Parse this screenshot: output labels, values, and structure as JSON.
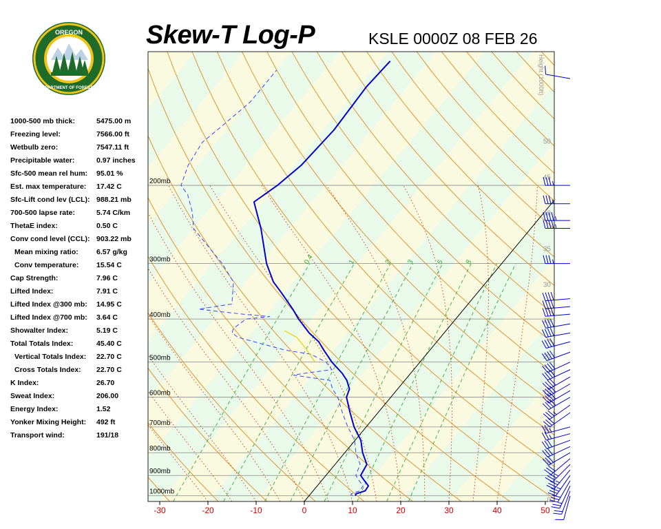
{
  "logo": {
    "top_text": "OREGON",
    "bottom_text": "DEPARTMENT OF FORESTRY"
  },
  "header": {
    "title": "Skew-T Log-P",
    "station_time": "KSLE 0000Z 08 FEB 26"
  },
  "indices": [
    {
      "label": "1000-500 mb thick:",
      "value": "5475.00 m"
    },
    {
      "label": "Freezing level:",
      "value": "7566.00 ft"
    },
    {
      "label": "Wetbulb zero:",
      "value": "7547.11 ft"
    },
    {
      "label": "Precipitable water:",
      "value": "0.97 inches"
    },
    {
      "label": "Sfc-500 mean rel hum:",
      "value": "95.01 %"
    },
    {
      "label": "Est. max temperature:",
      "value": "17.42 C"
    },
    {
      "label": "Sfc-Lift cond lev (LCL):",
      "value": "988.21 mb"
    },
    {
      "label": "700-500 lapse rate:",
      "value": "5.74 C/km"
    },
    {
      "label": "ThetaE index:",
      "value": "0.50 C"
    },
    {
      "label": "Conv cond level (CCL):",
      "value": "903.22 mb"
    },
    {
      "label": "Mean mixing ratio:",
      "value": "6.57 g/kg",
      "indent": true
    },
    {
      "label": "Conv temperature:",
      "value": "15.54 C",
      "indent": true
    },
    {
      "label": "Cap Strength:",
      "value": "7.96 C"
    },
    {
      "label": "Lifted Index:",
      "value": "7.91 C"
    },
    {
      "label": "Lifted Index @300 mb:",
      "value": "14.95 C"
    },
    {
      "label": "Lifted Index @700 mb:",
      "value": "3.64 C"
    },
    {
      "label": "Showalter Index:",
      "value": "5.19 C"
    },
    {
      "label": "Total Totals Index:",
      "value": "45.40 C"
    },
    {
      "label": "Vertical Totals Index:",
      "value": "22.70 C",
      "indent": true
    },
    {
      "label": "Cross Totals Index:",
      "value": "22.70 C",
      "indent": true
    },
    {
      "label": "K Index:",
      "value": "26.70"
    },
    {
      "label": "Sweat Index:",
      "value": "206.00"
    },
    {
      "label": "Energy Index:",
      "value": "1.52"
    },
    {
      "label": "Yonker Mixing Height:",
      "value": "492 ft"
    },
    {
      "label": "Transport wind:",
      "value": "191/18"
    }
  ],
  "colors": {
    "temperature": "#0000cc",
    "dewpoint": "#3344ff",
    "isotherm_label": "#cc0000",
    "dry_adiabat": "#e08a1a",
    "moist_adiabat": "#cc3300",
    "mixing_ratio": "#33aa33",
    "parcel": "#e6d200",
    "band_green": "#eafaea",
    "band_yellow": "#fafae0"
  },
  "chart_data": {
    "type": "line",
    "title": "Skew-T Log-P",
    "subtitle": "KSLE 0000Z 08 FEB 26",
    "x_axis": {
      "unit": "C",
      "range": [
        -33,
        52
      ],
      "ticks": [
        -30,
        -20,
        -10,
        0,
        10,
        20,
        30,
        40,
        50
      ]
    },
    "y_axis": {
      "scale": "log",
      "unit": "mb",
      "range": [
        1030,
        100
      ],
      "pressure_labels": [
        "1000mb",
        "900mb",
        "800mb",
        "700mb",
        "600mb",
        "500mb",
        "400mb",
        "300mb",
        "200mb"
      ],
      "pressure_levels": [
        1000,
        900,
        800,
        700,
        600,
        500,
        400,
        300,
        200
      ]
    },
    "height_axis": {
      "label": "Height (1000ft)",
      "ticks": [
        "0",
        "5",
        "10",
        "15",
        "20",
        "25",
        "30",
        "35",
        "40",
        "45",
        "50"
      ]
    },
    "mixing_ratio_labels": [
      "0.4",
      "1",
      "2",
      "3",
      "5",
      "8"
    ],
    "series": [
      {
        "name": "temperature",
        "points": [
          [
            1000,
            9.6
          ],
          [
            990,
            9.4
          ],
          [
            975,
            10.8
          ],
          [
            950,
            10.6
          ],
          [
            925,
            8.9
          ],
          [
            900,
            7.2
          ],
          [
            850,
            6.6
          ],
          [
            800,
            3.7
          ],
          [
            750,
            1.2
          ],
          [
            700,
            -2.5
          ],
          [
            650,
            -5.8
          ],
          [
            600,
            -9.2
          ],
          [
            575,
            -10.0
          ],
          [
            550,
            -12.0
          ],
          [
            530,
            -14.2
          ],
          [
            500,
            -18.3
          ],
          [
            470,
            -22.0
          ],
          [
            450,
            -24.5
          ],
          [
            430,
            -28.0
          ],
          [
            400,
            -32.6
          ],
          [
            380,
            -35.5
          ],
          [
            350,
            -40.5
          ],
          [
            330,
            -44.2
          ],
          [
            300,
            -48.8
          ],
          [
            250,
            -56.0
          ],
          [
            218,
            -62.0
          ],
          [
            200,
            -60.0
          ],
          [
            180,
            -58.5
          ],
          [
            150,
            -57.8
          ],
          [
            120,
            -58.5
          ],
          [
            105,
            -58.0
          ]
        ]
      },
      {
        "name": "dewpoint",
        "points": [
          [
            1000,
            9.0
          ],
          [
            990,
            8.4
          ],
          [
            975,
            9.7
          ],
          [
            950,
            9.5
          ],
          [
            925,
            7.8
          ],
          [
            900,
            6.2
          ],
          [
            850,
            5.2
          ],
          [
            800,
            2.3
          ],
          [
            750,
            -0.1
          ],
          [
            700,
            -3.8
          ],
          [
            650,
            -7.4
          ],
          [
            600,
            -11.0
          ],
          [
            575,
            -13.5
          ],
          [
            550,
            -15.5
          ],
          [
            535,
            -24.0
          ],
          [
            530,
            -22.0
          ],
          [
            520,
            -17.0
          ],
          [
            500,
            -19.5
          ],
          [
            480,
            -24.0
          ],
          [
            470,
            -30.0
          ],
          [
            440,
            -42.0
          ],
          [
            430,
            -44.0
          ],
          [
            420,
            -44.5
          ],
          [
            400,
            -43.5
          ],
          [
            395,
            -39.0
          ],
          [
            390,
            -45.0
          ],
          [
            385,
            -50.0
          ],
          [
            380,
            -55.0
          ],
          [
            370,
            -49.0
          ],
          [
            330,
            -52.5
          ],
          [
            300,
            -58.0
          ],
          [
            250,
            -70.0
          ],
          [
            230,
            -73.0
          ],
          [
            210,
            -77.0
          ],
          [
            200,
            -80.0
          ],
          [
            180,
            -82.0
          ],
          [
            160,
            -83.0
          ],
          [
            150,
            -82.0
          ],
          [
            130,
            -80.0
          ],
          [
            110,
            -80.0
          ]
        ]
      },
      {
        "name": "parcel",
        "points": [
          [
            500,
            -21.8
          ],
          [
            470,
            -25.5
          ],
          [
            440,
            -29.8
          ],
          [
            425,
            -33.5
          ]
        ]
      }
    ],
    "wind_barbs": [
      {
        "pressure": 1000,
        "dir": 195,
        "kt": 10
      },
      {
        "pressure": 975,
        "dir": 200,
        "kt": 20
      },
      {
        "pressure": 950,
        "dir": 205,
        "kt": 25
      },
      {
        "pressure": 925,
        "dir": 210,
        "kt": 30
      },
      {
        "pressure": 900,
        "dir": 215,
        "kt": 35
      },
      {
        "pressure": 875,
        "dir": 220,
        "kt": 35
      },
      {
        "pressure": 850,
        "dir": 225,
        "kt": 35
      },
      {
        "pressure": 825,
        "dir": 230,
        "kt": 30
      },
      {
        "pressure": 800,
        "dir": 240,
        "kt": 30
      },
      {
        "pressure": 775,
        "dir": 245,
        "kt": 30
      },
      {
        "pressure": 750,
        "dir": 250,
        "kt": 30
      },
      {
        "pressure": 725,
        "dir": 255,
        "kt": 25
      },
      {
        "pressure": 700,
        "dir": 255,
        "kt": 25
      },
      {
        "pressure": 650,
        "dir": 235,
        "kt": 30
      },
      {
        "pressure": 625,
        "dir": 235,
        "kt": 35
      },
      {
        "pressure": 600,
        "dir": 240,
        "kt": 40
      },
      {
        "pressure": 580,
        "dir": 240,
        "kt": 40
      },
      {
        "pressure": 560,
        "dir": 240,
        "kt": 40
      },
      {
        "pressure": 540,
        "dir": 240,
        "kt": 40
      },
      {
        "pressure": 520,
        "dir": 245,
        "kt": 40
      },
      {
        "pressure": 500,
        "dir": 245,
        "kt": 40
      },
      {
        "pressure": 475,
        "dir": 250,
        "kt": 40
      },
      {
        "pressure": 450,
        "dir": 255,
        "kt": 40
      },
      {
        "pressure": 430,
        "dir": 260,
        "kt": 40
      },
      {
        "pressure": 410,
        "dir": 260,
        "kt": 40
      },
      {
        "pressure": 390,
        "dir": 265,
        "kt": 40
      },
      {
        "pressure": 375,
        "dir": 265,
        "kt": 40
      },
      {
        "pressure": 360,
        "dir": 265,
        "kt": 40
      },
      {
        "pressure": 300,
        "dir": 270,
        "kt": 35
      },
      {
        "pressure": 250,
        "dir": 270,
        "kt": 45
      },
      {
        "pressure": 240,
        "dir": 270,
        "kt": 45
      },
      {
        "pressure": 220,
        "dir": 270,
        "kt": 35
      },
      {
        "pressure": 200,
        "dir": 270,
        "kt": 35
      },
      {
        "pressure": 115,
        "dir": 280,
        "kt": 10
      }
    ]
  }
}
